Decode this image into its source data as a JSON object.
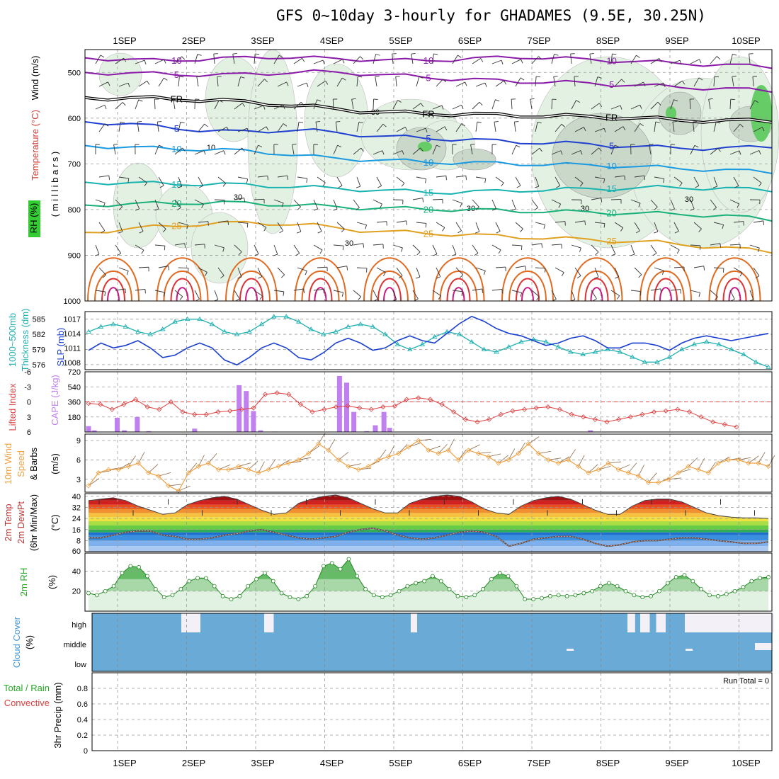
{
  "title": "GFS 0~10day 3-hourly for GHADAMES (9.5E, 30.25N)",
  "dates": [
    "1SEP",
    "2SEP",
    "3SEP",
    "4SEP",
    "5SEP",
    "6SEP",
    "7SEP",
    "8SEP",
    "9SEP",
    "10SEP"
  ],
  "chart_data": [
    {
      "type": "contour",
      "panel": "upper-air",
      "ylabel": "(millibars)",
      "legend": [
        "Wind (m/s)",
        "Temperature (°C)",
        "RH (%)"
      ],
      "yticks": [
        500,
        600,
        700,
        800,
        900,
        1000
      ],
      "ylim": [
        450,
        1000
      ],
      "isotherms": [
        {
          "label": "10",
          "color": "#8a1aa8",
          "p": [
            468,
            470,
            472,
            474,
            473,
            471,
            470,
            468,
            466,
            467,
            469,
            470,
            471,
            473,
            474,
            473,
            472,
            470,
            468,
            466,
            468,
            470,
            472,
            474,
            476,
            478,
            480,
            482,
            484,
            486,
            488
          ]
        },
        {
          "label": "5",
          "color": "#8a1aa8",
          "p": [
            500,
            501,
            502,
            503,
            504,
            505,
            506,
            504,
            502,
            500,
            499,
            500,
            502,
            505,
            508,
            511,
            514,
            516,
            518,
            520,
            521,
            522,
            524,
            526,
            528,
            530,
            532,
            534,
            536,
            538,
            540
          ]
        },
        {
          "label": "FR",
          "color": "#000000",
          "p": [
            555,
            556,
            556,
            557,
            558,
            560,
            562,
            565,
            568,
            572,
            576,
            580,
            584,
            587,
            589,
            590,
            591,
            592,
            593,
            594,
            595,
            596,
            597,
            598,
            600,
            602,
            604,
            605,
            606,
            606,
            606
          ]
        },
        {
          "label": "5",
          "color": "#1f3fd0",
          "p": [
            608,
            610,
            613,
            618,
            622,
            626,
            629,
            630,
            628,
            626,
            628,
            632,
            636,
            640,
            642,
            644,
            646,
            648,
            650,
            652,
            654,
            655,
            657,
            660,
            662,
            664,
            665,
            666,
            666,
            664,
            662
          ]
        },
        {
          "label": "10",
          "color": "#1a9ae0",
          "p": [
            660,
            662,
            664,
            666,
            667,
            668,
            670,
            672,
            675,
            680,
            685,
            688,
            690,
            692,
            694,
            696,
            697,
            698,
            699,
            700,
            701,
            702,
            703,
            704,
            706,
            708,
            710,
            712,
            714,
            716,
            718
          ]
        },
        {
          "label": "15",
          "color": "#17b3b0",
          "p": [
            740,
            741,
            742,
            743,
            744,
            744,
            745,
            746,
            748,
            750,
            752,
            754,
            756,
            758,
            760,
            762,
            762,
            761,
            760,
            758,
            757,
            756,
            755,
            754,
            753,
            752,
            752,
            753,
            754,
            756,
            758
          ]
        },
        {
          "label": "20",
          "color": "#1ab07a",
          "p": [
            790,
            789,
            788,
            787,
            786,
            785,
            785,
            786,
            788,
            790,
            792,
            794,
            796,
            797,
            798,
            799,
            800,
            801,
            802,
            803,
            804,
            805,
            806,
            807,
            808,
            809,
            810,
            812,
            814,
            818,
            822
          ]
        },
        {
          "label": "25",
          "color": "#e0a020",
          "p": [
            850,
            846,
            842,
            838,
            835,
            832,
            830,
            829,
            830,
            832,
            835,
            840,
            845,
            848,
            850,
            852,
            854,
            856,
            858,
            860,
            862,
            864,
            866,
            868,
            870,
            872,
            876,
            880,
            884,
            888,
            892
          ]
        }
      ],
      "rh_labels": [
        "10",
        "30",
        "30",
        "30",
        "30",
        "30",
        "30"
      ]
    },
    {
      "type": "line",
      "panel": "thickness-slp",
      "ylabel": [
        "1000~500mb Thickness (dm)",
        "SLP (mb)"
      ],
      "left_ticks": [
        576,
        579,
        582,
        585
      ],
      "right_ticks": [
        1008,
        1011,
        1014,
        1017
      ],
      "ylim_left": [
        575,
        586.5
      ],
      "ylim_right": [
        1006.5,
        1018.5
      ],
      "series": [
        {
          "axis": "left",
          "color": "#20b0b0",
          "marker": "triangle",
          "values": [
            582.5,
            583.5,
            584,
            583.5,
            582.5,
            582,
            583,
            584.5,
            585,
            585,
            584,
            582.5,
            582,
            582.5,
            584,
            585.5,
            585.5,
            584.5,
            583,
            582,
            582.5,
            583.5,
            584,
            583.5,
            582,
            580,
            579,
            580,
            581.5,
            582.5,
            582,
            580.5,
            579,
            578.5,
            579.5,
            580.5,
            581,
            580.5,
            579.5,
            578.5,
            578,
            578.5,
            579,
            578.5,
            577.5,
            576.5,
            576.5,
            577.5,
            579,
            580,
            580.5,
            580,
            579,
            578,
            576.5,
            575.5
          ]
        },
        {
          "axis": "right",
          "color": "#1a3fd0",
          "values": [
            1010.5,
            1012,
            1011,
            1011.5,
            1012.5,
            1011,
            1009,
            1009.5,
            1011,
            1012,
            1011,
            1008.5,
            1007.5,
            1009,
            1011,
            1012,
            1011,
            1009,
            1008.5,
            1010,
            1012,
            1013,
            1012,
            1010.5,
            1011,
            1012.5,
            1013.5,
            1012.5,
            1012,
            1014,
            1016,
            1017.5,
            1016.5,
            1015,
            1014,
            1013.5,
            1012.5,
            1011.5,
            1012,
            1013,
            1013.5,
            1012.5,
            1011,
            1011,
            1012,
            1012,
            1011.5,
            1010.5,
            1012,
            1013,
            1013.5,
            1013,
            1012.5,
            1013,
            1013.5,
            1014
          ]
        }
      ]
    },
    {
      "type": "bar",
      "panel": "lifted-index-cape",
      "ylabel": [
        "Lifted Index",
        "CAPE (J/kg)"
      ],
      "left_ticks": [
        -6,
        -3,
        0,
        3,
        6
      ],
      "right_ticks": [
        180,
        360,
        540,
        720
      ],
      "ylim_cape": [
        0,
        720
      ],
      "ylim_li": [
        6,
        -6
      ],
      "cape": [
        {
          "x": 0.0,
          "v": 70
        },
        {
          "x": 0.2,
          "v": 20
        },
        {
          "x": 1.0,
          "v": 170
        },
        {
          "x": 1.25,
          "v": 20
        },
        {
          "x": 1.7,
          "v": 180
        },
        {
          "x": 2.1,
          "v": 10
        },
        {
          "x": 3.7,
          "v": 40
        },
        {
          "x": 5.25,
          "v": 560
        },
        {
          "x": 5.5,
          "v": 490
        },
        {
          "x": 5.75,
          "v": 250
        },
        {
          "x": 6.0,
          "v": 20
        },
        {
          "x": 6.5,
          "v": 5
        },
        {
          "x": 8.75,
          "v": 670
        },
        {
          "x": 9.0,
          "v": 590
        },
        {
          "x": 9.25,
          "v": 240
        },
        {
          "x": 9.7,
          "v": 10
        },
        {
          "x": 10.0,
          "v": 80
        },
        {
          "x": 10.3,
          "v": 240
        },
        {
          "x": 10.5,
          "v": 50
        },
        {
          "x": 17.5,
          "v": 20
        }
      ],
      "li": [
        0.3,
        0.5,
        1.5,
        0.5,
        -0.5,
        1,
        1.5,
        0,
        2,
        2.5,
        2.5,
        2,
        1.8,
        1.5,
        1.2,
        -1.5,
        -1.8,
        -1.5,
        0.5,
        2,
        1.5,
        1,
        0.8,
        1.2,
        1.5,
        1,
        0.8,
        -0.5,
        -0.8,
        -0.5,
        0.5,
        2,
        3.5,
        4,
        3.5,
        2.5,
        1.8,
        1.5,
        1.2,
        1,
        1.5,
        2.5,
        3,
        3.5,
        4,
        3.5,
        3,
        2.5,
        2,
        1.8,
        1.5,
        2,
        3,
        4,
        4.5,
        5
      ]
    },
    {
      "type": "line",
      "panel": "wind-10m",
      "ylabel": [
        "10m Wind",
        "Speed",
        "& Barbs",
        "(m/s)"
      ],
      "left_ticks": [
        3,
        6,
        9
      ],
      "ylim": [
        1,
        10
      ],
      "values": [
        2,
        4,
        4.5,
        4.5,
        5,
        5.5,
        4,
        3.5,
        2,
        1.2,
        4,
        5,
        5.5,
        4.5,
        4.5,
        5,
        4.5,
        4,
        4.5,
        5,
        5.5,
        6,
        7,
        8.5,
        7.5,
        6,
        5,
        4.5,
        5,
        6,
        6.5,
        7,
        8,
        9,
        7.5,
        7,
        7.5,
        6,
        7.5,
        7,
        6.5,
        5.5,
        6,
        7,
        8.5,
        7,
        6,
        5.5,
        6,
        5,
        4,
        4.5,
        5.5,
        4.5,
        4,
        3.5,
        2.5,
        2.5,
        3,
        4,
        5,
        4.5,
        4,
        5.5,
        6,
        6,
        5.5,
        5.5,
        5
      ]
    },
    {
      "type": "area",
      "panel": "temp-dewpt",
      "ylabel": [
        "2m Temp",
        "2m DewPt",
        "(6hr Min/Max)",
        "(°C)"
      ],
      "left_ticks": [
        60,
        8,
        16,
        24,
        32,
        40
      ],
      "ylim": [
        0,
        42
      ],
      "temp": [
        37,
        38,
        39,
        37,
        33,
        30,
        27,
        28,
        34,
        37,
        39,
        40,
        38,
        34,
        30,
        27,
        28,
        35,
        38,
        40,
        41,
        39,
        35,
        31,
        28,
        28,
        35,
        38,
        40,
        41,
        40,
        36,
        31,
        28,
        27,
        33,
        37,
        39,
        40,
        38,
        34,
        30,
        27,
        27,
        33,
        37,
        38,
        38,
        36,
        32,
        28,
        26,
        25,
        24.5,
        24.5,
        24
      ],
      "dewpt": [
        10,
        10,
        12,
        14,
        15,
        15,
        12,
        11,
        9,
        9,
        10,
        12,
        13,
        15,
        16,
        14,
        12,
        10,
        9,
        10,
        11,
        14,
        16,
        17,
        15,
        12,
        10,
        9,
        10,
        12,
        14,
        15,
        14,
        11,
        4,
        6,
        9,
        10,
        11,
        11,
        9,
        6,
        4,
        5,
        7,
        8,
        8,
        9,
        10,
        10,
        9,
        8,
        7,
        6,
        6,
        7
      ]
    },
    {
      "type": "area",
      "panel": "rh-2m",
      "ylabel": [
        "2m RH",
        "(%)"
      ],
      "left_ticks": [
        20,
        40
      ],
      "ylim": [
        0,
        58
      ],
      "values": [
        18,
        16,
        20,
        25,
        38,
        45,
        44,
        35,
        22,
        14,
        16,
        22,
        30,
        33,
        33,
        25,
        15,
        12,
        15,
        25,
        32,
        38,
        30,
        18,
        14,
        12,
        15,
        25,
        45,
        48,
        42,
        52,
        35,
        22,
        16,
        14,
        16,
        20,
        25,
        28,
        30,
        35,
        30,
        22,
        15,
        14,
        16,
        22,
        32,
        38,
        35,
        25,
        12,
        12,
        13,
        15,
        16,
        15,
        16,
        18,
        20,
        25,
        28,
        25,
        20,
        16,
        14,
        15,
        20,
        28,
        34,
        36,
        30,
        22,
        16,
        15,
        17,
        20,
        24,
        30,
        33,
        34
      ]
    },
    {
      "type": "heatmap",
      "panel": "cloud-cover",
      "ylabel": [
        "Cloud Cover",
        "(%)"
      ],
      "row_labels": [
        "high",
        "middle",
        "low"
      ],
      "breaks_high": [
        {
          "x": 1.4,
          "w": 0.2
        },
        {
          "x": 1.55,
          "w": 0.15
        },
        {
          "x": 2.7,
          "w": 0.15
        },
        {
          "x": 5.0,
          "w": 0.1
        },
        {
          "x": 8.4,
          "w": 0.12
        },
        {
          "x": 8.6,
          "w": 0.15
        },
        {
          "x": 8.85,
          "w": 0.15
        },
        {
          "x": 9.3,
          "w": 0.4
        },
        {
          "x": 9.7,
          "w": 0.5
        },
        {
          "x": 10.2,
          "w": 0.5
        }
      ]
    },
    {
      "type": "bar",
      "panel": "precip",
      "ylabel": [
        "Total / Rain",
        "Convective",
        "3hr Precip (mm)"
      ],
      "annotation": "Run Total = 0",
      "left_ticks": [
        0,
        0.2,
        0.4,
        0.6,
        0.8
      ],
      "ylim": [
        0,
        1
      ],
      "values": []
    }
  ]
}
